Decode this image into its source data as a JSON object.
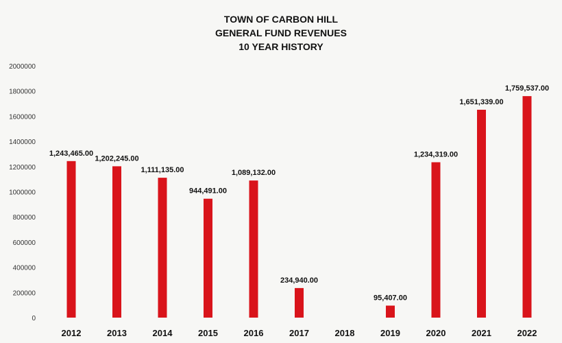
{
  "chart_data": {
    "type": "bar",
    "title_lines": [
      "TOWN OF CARBON HILL",
      "GENERAL FUND REVENUES",
      "10 YEAR HISTORY"
    ],
    "categories": [
      "2012",
      "2013",
      "2014",
      "2015",
      "2016",
      "2017",
      "2018",
      "2019",
      "2020",
      "2021",
      "2022"
    ],
    "values": [
      1243465,
      1202245,
      1111135,
      944491,
      1089132,
      234940,
      0,
      95407,
      1234319,
      1651339,
      1759537
    ],
    "data_labels": [
      "1,243,465.00",
      "1,202,245.00",
      "1,111,135.00",
      "944,491.00",
      "1,089,132.00",
      "234,940.00",
      "",
      "95,407.00",
      "1,234,319.00",
      "1,651,339.00",
      "1,759,537.00"
    ],
    "yticks": [
      "0",
      "200000",
      "400000",
      "600000",
      "800000",
      "1000000",
      "1200000",
      "1400000",
      "1600000",
      "1800000",
      "2000000"
    ],
    "ylim": [
      0,
      2000000
    ],
    "xlabel": "",
    "ylabel": "",
    "grid": false,
    "legend": "none",
    "bar_color": "#d9141b"
  }
}
